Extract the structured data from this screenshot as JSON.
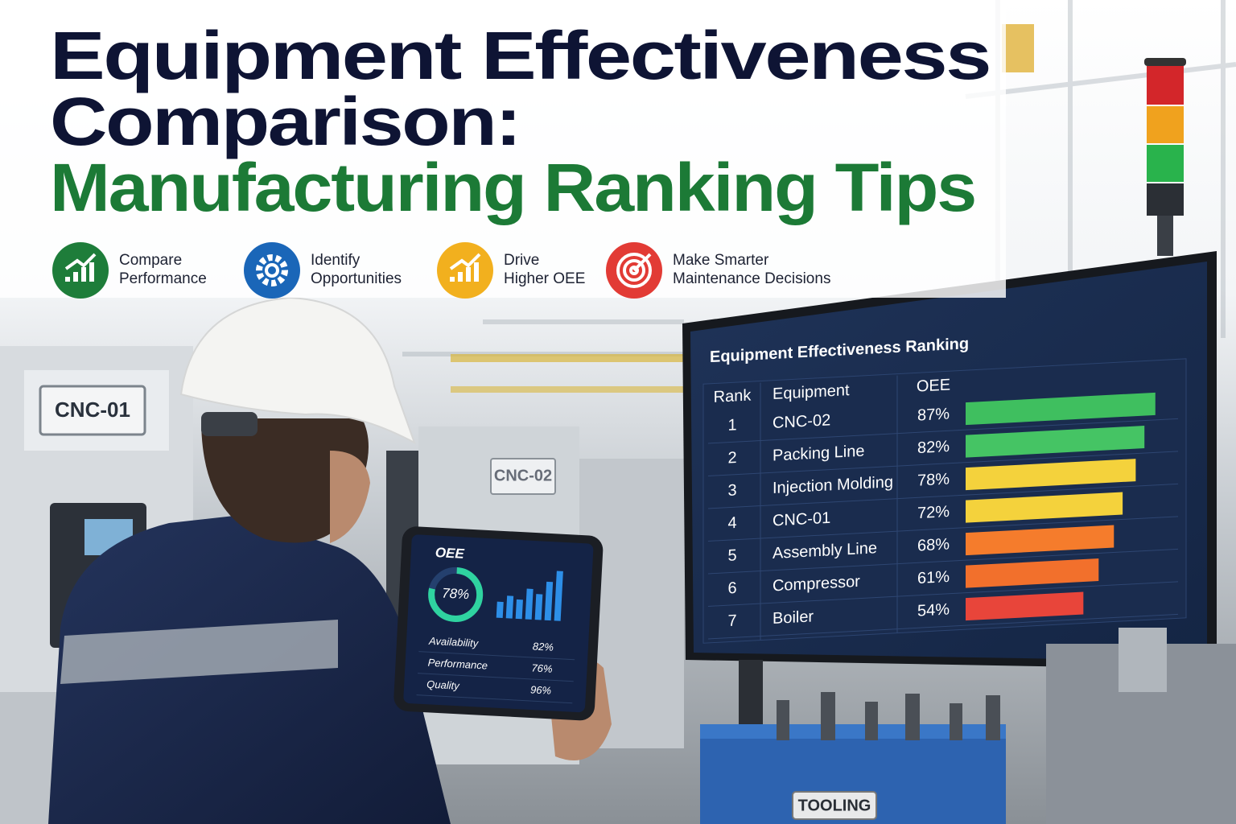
{
  "header": {
    "title_lines": [
      "Equipment Effectiveness",
      "Comparison:",
      "Manufacturing Ranking Tips"
    ]
  },
  "features": [
    {
      "lines": [
        "Compare",
        "Performance"
      ],
      "color": "#1e7d3a"
    },
    {
      "lines": [
        "Identify",
        "Opportunities"
      ],
      "color": "#1a66b8"
    },
    {
      "lines": [
        "Drive",
        "Higher OEE"
      ],
      "color": "#f2b01e"
    },
    {
      "lines": [
        "Make Smarter",
        "Maintenance Decisions"
      ],
      "color": "#e23b35"
    }
  ],
  "chart_data": {
    "type": "bar",
    "title": "Equipment Effectiveness Ranking",
    "column_headers": [
      "Rank",
      "Equipment",
      "OEE"
    ],
    "ranks": [
      1,
      2,
      3,
      4,
      5,
      6,
      7
    ],
    "categories": [
      "CNC-02",
      "Packing Line",
      "Injection Molding",
      "CNC-01",
      "Assembly Line",
      "Compressor",
      "Boiler"
    ],
    "values": [
      87,
      82,
      78,
      72,
      68,
      61,
      54
    ],
    "value_labels": [
      "87%",
      "82%",
      "78%",
      "72%",
      "68%",
      "61%",
      "54%"
    ],
    "colors": [
      "#3fbf5f",
      "#45c464",
      "#f4d23c",
      "#f4d23c",
      "#f57c2c",
      "#f2702c",
      "#e8453a"
    ]
  },
  "tablet": {
    "title": "OEE",
    "value": 78,
    "value_label": "78%",
    "metrics": [
      "Availability",
      "Performance",
      "Quality"
    ],
    "metric_values": [
      "82%",
      "76%",
      "96%"
    ]
  },
  "scene_labels": [
    "CNC-01",
    "CNC-02",
    "TOOLING"
  ]
}
